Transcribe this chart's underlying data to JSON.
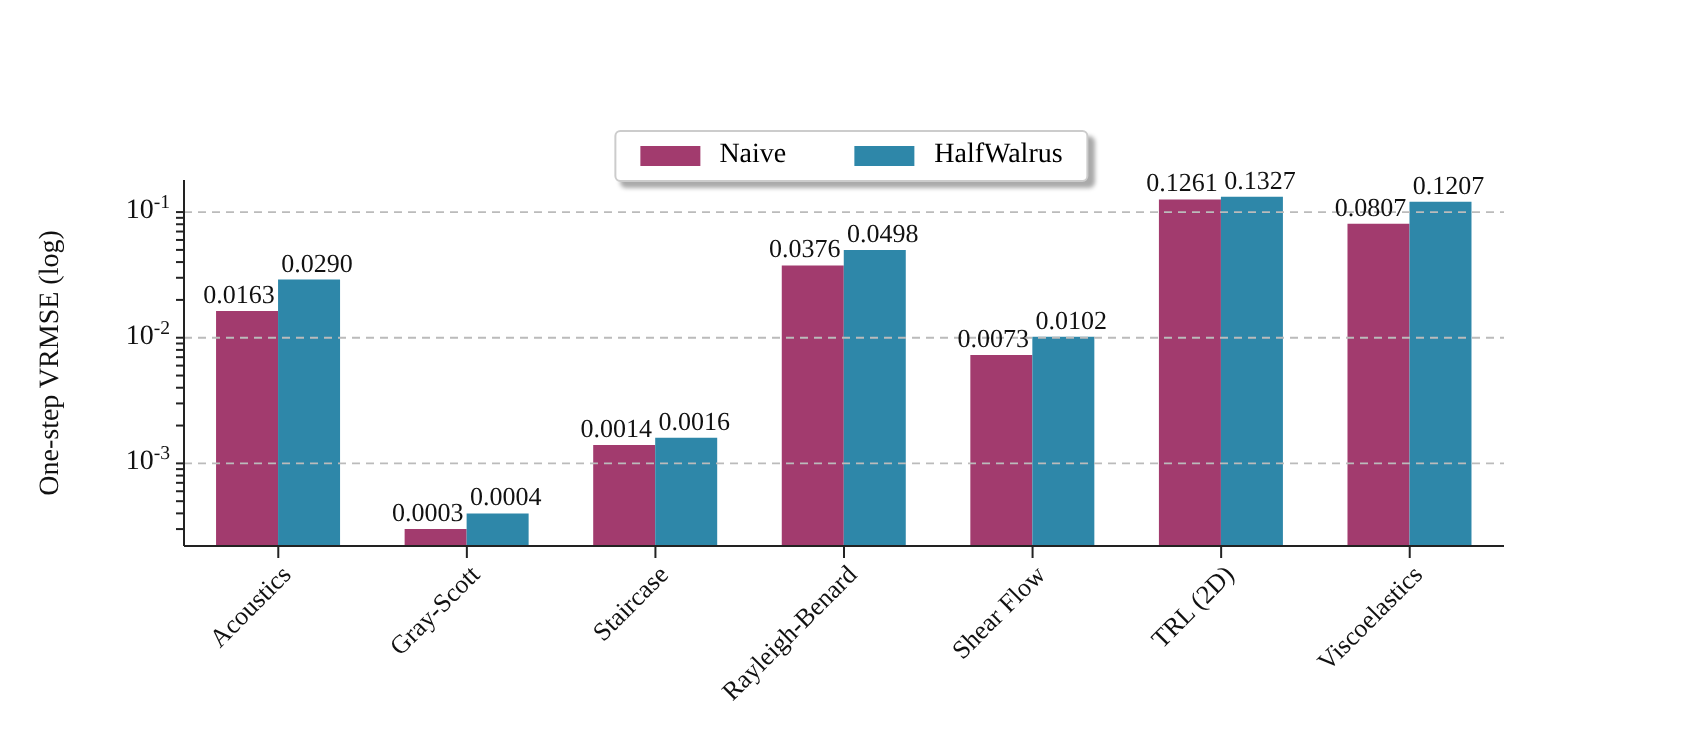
{
  "chart_data": {
    "type": "bar",
    "ylabel": "One-step VRMSE (log)",
    "categories": [
      "Acoustics",
      "Gray-Scott",
      "Staircase",
      "Rayleigh-Benard",
      "Shear Flow",
      "TRL (2D)",
      "Viscoelastics"
    ],
    "series": [
      {
        "name": "Naive",
        "color": "#a23b6e",
        "values": [
          0.0163,
          0.0003,
          0.0014,
          0.0376,
          0.0073,
          0.1261,
          0.0807
        ],
        "value_labels": [
          "0.0163",
          "0.0003",
          "0.0014",
          "0.0376",
          "0.0073",
          "0.1261",
          "0.0807"
        ]
      },
      {
        "name": "HalfWalrus",
        "color": "#2e87a9",
        "values": [
          0.029,
          0.0004,
          0.0016,
          0.0498,
          0.0102,
          0.1327,
          0.1207
        ],
        "value_labels": [
          "0.0290",
          "0.0004",
          "0.0016",
          "0.0498",
          "0.0102",
          "0.1327",
          "0.1207"
        ]
      }
    ],
    "log": true,
    "ylim": [
      0.00022,
      0.18
    ],
    "yticks": [
      {
        "value": 0.001,
        "label": "10$^{-3}$"
      },
      {
        "value": 0.01,
        "label": "10$^{-2}$"
      },
      {
        "value": 0.1,
        "label": "10$^{-1}$"
      },
      {
        "value": 0.0003,
        "label": null
      },
      {
        "value": 0.0004,
        "label": null
      },
      {
        "value": 0.0005,
        "label": null
      },
      {
        "value": 0.0006,
        "label": null
      },
      {
        "value": 0.0007,
        "label": null
      },
      {
        "value": 0.0008,
        "label": null
      },
      {
        "value": 0.0009,
        "label": null
      },
      {
        "value": 0.002,
        "label": null
      },
      {
        "value": 0.003,
        "label": null
      },
      {
        "value": 0.004,
        "label": null
      },
      {
        "value": 0.005,
        "label": null
      },
      {
        "value": 0.006,
        "label": null
      },
      {
        "value": 0.007,
        "label": null
      },
      {
        "value": 0.008,
        "label": null
      },
      {
        "value": 0.009,
        "label": null
      },
      {
        "value": 0.02,
        "label": null
      },
      {
        "value": 0.03,
        "label": null
      },
      {
        "value": 0.04,
        "label": null
      },
      {
        "value": 0.05,
        "label": null
      },
      {
        "value": 0.06,
        "label": null
      },
      {
        "value": 0.07,
        "label": null
      },
      {
        "value": 0.08,
        "label": null
      },
      {
        "value": 0.09,
        "label": null
      }
    ],
    "grid": "y",
    "legend": "top"
  }
}
